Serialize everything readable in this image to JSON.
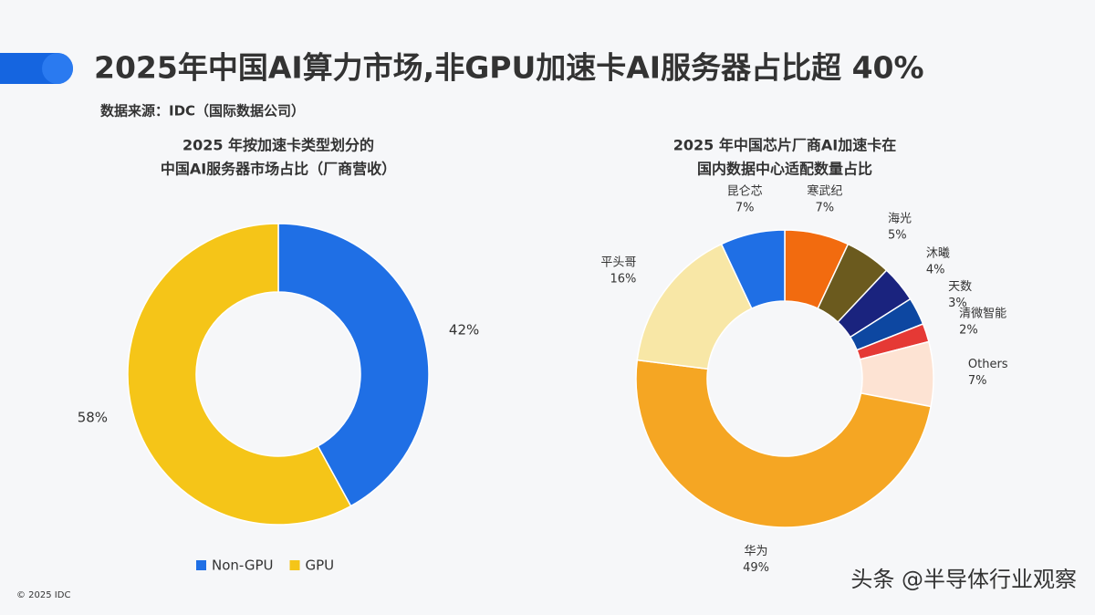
{
  "header": {
    "title": "2025年中国AI算力市场,非GPU加速卡AI服务器占比超 40%",
    "source": "数据来源：IDC（国际数据公司）"
  },
  "footer": {
    "copyright": "© 2025 IDC",
    "watermark": "头条 @半导体行业观察"
  },
  "chart_data": [
    {
      "type": "donut",
      "title": [
        "2025 年按加速卡类型划分的",
        "中国AI服务器市场占比（厂商营收）"
      ],
      "categories": [
        "Non-GPU",
        "GPU"
      ],
      "values": [
        42,
        58
      ],
      "value_labels": [
        "42%",
        "58%"
      ],
      "colors": [
        "#1f6fe5",
        "#f5c518"
      ],
      "legend": "bottom",
      "show_category_labels": false
    },
    {
      "type": "donut",
      "title": [
        "2025 年中国芯片厂商AI加速卡在",
        "国内数据中心适配数量占比"
      ],
      "categories": [
        "寒武纪",
        "海光",
        "沐曦",
        "天数",
        "清微智能",
        "Others",
        "华为",
        "平头哥",
        "昆仑芯"
      ],
      "values": [
        7,
        5,
        4,
        3,
        2,
        7,
        49,
        16,
        7
      ],
      "value_labels": [
        "7%",
        "5%",
        "4%",
        "3%",
        "2%",
        "7%",
        "49%",
        "16%",
        "7%"
      ],
      "colors": [
        "#f26b0f",
        "#6b5a1e",
        "#1a237e",
        "#0d47a1",
        "#e53935",
        "#fde3d3",
        "#f5a623",
        "#f8e7a6",
        "#1f6fe5"
      ],
      "show_category_labels": true
    }
  ]
}
